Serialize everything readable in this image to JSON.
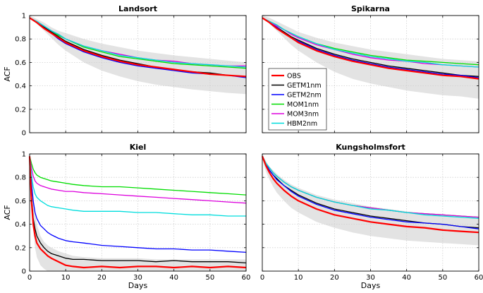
{
  "chart_data": [
    {
      "type": "line",
      "title": "Landsort",
      "xlabel": "",
      "ylabel": "ACF",
      "xlim": [
        0,
        60
      ],
      "ylim": [
        0,
        1
      ],
      "xticks": [
        0,
        10,
        20,
        30,
        40,
        50,
        60
      ],
      "yticks": [
        0,
        0.2,
        0.4,
        0.6,
        0.8,
        1
      ],
      "show_xticklabels": false,
      "grid": true,
      "x": [
        0,
        2,
        4,
        6,
        8,
        10,
        15,
        20,
        25,
        30,
        35,
        40,
        45,
        50,
        55,
        60
      ],
      "band": {
        "upper": [
          1.0,
          0.97,
          0.94,
          0.9,
          0.87,
          0.85,
          0.8,
          0.76,
          0.73,
          0.7,
          0.68,
          0.66,
          0.645,
          0.63,
          0.615,
          0.6
        ],
        "lower": [
          0.98,
          0.93,
          0.87,
          0.81,
          0.75,
          0.7,
          0.6,
          0.53,
          0.48,
          0.44,
          0.41,
          0.39,
          0.37,
          0.355,
          0.34,
          0.33
        ]
      },
      "series": [
        {
          "name": "OBS",
          "values": [
            0.98,
            0.94,
            0.89,
            0.85,
            0.81,
            0.77,
            0.7,
            0.65,
            0.61,
            0.58,
            0.56,
            0.54,
            0.52,
            0.5,
            0.49,
            0.48
          ]
        },
        {
          "name": "GETM1nm",
          "values": [
            0.98,
            0.94,
            0.9,
            0.86,
            0.82,
            0.78,
            0.71,
            0.66,
            0.62,
            0.59,
            0.56,
            0.54,
            0.52,
            0.51,
            0.49,
            0.48
          ]
        },
        {
          "name": "GETM2nm",
          "values": [
            0.98,
            0.94,
            0.89,
            0.85,
            0.8,
            0.76,
            0.69,
            0.64,
            0.6,
            0.57,
            0.55,
            0.53,
            0.51,
            0.5,
            0.49,
            0.47
          ]
        },
        {
          "name": "MOM1nm",
          "values": [
            0.98,
            0.95,
            0.91,
            0.87,
            0.83,
            0.8,
            0.73,
            0.69,
            0.65,
            0.63,
            0.61,
            0.59,
            0.58,
            0.57,
            0.56,
            0.55
          ]
        },
        {
          "name": "MOM3nm",
          "values": [
            0.98,
            0.95,
            0.91,
            0.87,
            0.84,
            0.8,
            0.74,
            0.7,
            0.67,
            0.64,
            0.62,
            0.61,
            0.59,
            0.58,
            0.57,
            0.57
          ]
        },
        {
          "name": "HBM2nm",
          "values": [
            0.98,
            0.95,
            0.91,
            0.87,
            0.84,
            0.8,
            0.74,
            0.7,
            0.66,
            0.64,
            0.62,
            0.6,
            0.59,
            0.58,
            0.57,
            0.56
          ]
        }
      ]
    },
    {
      "type": "line",
      "title": "Spikarna",
      "xlabel": "",
      "ylabel": "",
      "xlim": [
        0,
        60
      ],
      "ylim": [
        0,
        1
      ],
      "xticks": [
        0,
        10,
        20,
        30,
        40,
        50,
        60
      ],
      "yticks": [
        0,
        0.2,
        0.4,
        0.6,
        0.8,
        1
      ],
      "show_xticklabels": false,
      "show_yticklabels": false,
      "grid": true,
      "legend": "left",
      "x": [
        0,
        2,
        4,
        6,
        8,
        10,
        15,
        20,
        25,
        30,
        35,
        40,
        45,
        50,
        55,
        60
      ],
      "band": {
        "upper": [
          1.0,
          0.98,
          0.95,
          0.92,
          0.89,
          0.86,
          0.81,
          0.77,
          0.74,
          0.71,
          0.69,
          0.67,
          0.65,
          0.63,
          0.62,
          0.61
        ],
        "lower": [
          0.98,
          0.93,
          0.87,
          0.81,
          0.75,
          0.7,
          0.6,
          0.52,
          0.46,
          0.42,
          0.39,
          0.36,
          0.34,
          0.32,
          0.31,
          0.29
        ]
      },
      "series": [
        {
          "name": "OBS",
          "values": [
            0.98,
            0.94,
            0.89,
            0.85,
            0.81,
            0.77,
            0.7,
            0.65,
            0.61,
            0.58,
            0.55,
            0.53,
            0.51,
            0.49,
            0.48,
            0.46
          ]
        },
        {
          "name": "GETM1nm",
          "values": [
            0.98,
            0.94,
            0.9,
            0.86,
            0.82,
            0.79,
            0.72,
            0.67,
            0.63,
            0.6,
            0.57,
            0.55,
            0.53,
            0.51,
            0.49,
            0.48
          ]
        },
        {
          "name": "GETM2nm",
          "values": [
            0.98,
            0.94,
            0.9,
            0.85,
            0.81,
            0.78,
            0.71,
            0.66,
            0.62,
            0.59,
            0.56,
            0.54,
            0.52,
            0.5,
            0.49,
            0.47
          ]
        },
        {
          "name": "MOM1nm",
          "values": [
            0.98,
            0.95,
            0.92,
            0.88,
            0.85,
            0.82,
            0.76,
            0.72,
            0.69,
            0.66,
            0.64,
            0.62,
            0.61,
            0.6,
            0.59,
            0.58
          ]
        },
        {
          "name": "MOM3nm",
          "values": [
            0.98,
            0.95,
            0.91,
            0.88,
            0.84,
            0.81,
            0.75,
            0.71,
            0.67,
            0.64,
            0.62,
            0.61,
            0.59,
            0.58,
            0.57,
            0.56
          ]
        },
        {
          "name": "HBM2nm",
          "values": [
            0.98,
            0.95,
            0.92,
            0.88,
            0.85,
            0.82,
            0.76,
            0.71,
            0.68,
            0.65,
            0.63,
            0.61,
            0.6,
            0.58,
            0.57,
            0.56
          ]
        }
      ]
    },
    {
      "type": "line",
      "title": "Kiel",
      "xlabel": "Days",
      "ylabel": "ACF",
      "xlim": [
        0,
        60
      ],
      "ylim": [
        0,
        1
      ],
      "xticks": [
        0,
        10,
        20,
        30,
        40,
        50,
        60
      ],
      "yticks": [
        0,
        0.2,
        0.4,
        0.6,
        0.8,
        1
      ],
      "grid": true,
      "x": [
        0,
        0.5,
        1,
        1.5,
        2,
        3,
        4,
        5,
        6,
        8,
        10,
        12,
        15,
        20,
        25,
        30,
        35,
        40,
        45,
        50,
        55,
        60
      ],
      "band": {
        "upper": [
          1.0,
          0.85,
          0.65,
          0.5,
          0.4,
          0.3,
          0.25,
          0.22,
          0.2,
          0.17,
          0.15,
          0.13,
          0.12,
          0.11,
          0.11,
          0.11,
          0.1,
          0.1,
          0.1,
          0.1,
          0.1,
          0.1
        ],
        "lower": [
          0.95,
          0.6,
          0.35,
          0.2,
          0.12,
          0.05,
          0.02,
          0.0,
          0.0,
          0.0,
          0.0,
          0.0,
          0.0,
          0.0,
          0.0,
          0.0,
          0.0,
          0.0,
          0.0,
          0.0,
          0.0,
          0.0
        ]
      },
      "series": [
        {
          "name": "OBS",
          "values": [
            0.98,
            0.6,
            0.4,
            0.3,
            0.24,
            0.19,
            0.16,
            0.13,
            0.11,
            0.08,
            0.05,
            0.04,
            0.03,
            0.04,
            0.03,
            0.04,
            0.04,
            0.03,
            0.04,
            0.03,
            0.04,
            0.03
          ]
        },
        {
          "name": "GETM1nm",
          "values": [
            0.98,
            0.65,
            0.45,
            0.36,
            0.3,
            0.24,
            0.2,
            0.17,
            0.15,
            0.13,
            0.11,
            0.1,
            0.1,
            0.09,
            0.09,
            0.09,
            0.08,
            0.09,
            0.08,
            0.08,
            0.08,
            0.07
          ]
        },
        {
          "name": "GETM2nm",
          "values": [
            0.98,
            0.75,
            0.6,
            0.5,
            0.45,
            0.39,
            0.36,
            0.33,
            0.31,
            0.28,
            0.26,
            0.25,
            0.24,
            0.22,
            0.21,
            0.2,
            0.19,
            0.19,
            0.18,
            0.18,
            0.17,
            0.16
          ]
        },
        {
          "name": "MOM1nm",
          "values": [
            0.98,
            0.92,
            0.87,
            0.84,
            0.82,
            0.8,
            0.79,
            0.78,
            0.77,
            0.76,
            0.75,
            0.74,
            0.73,
            0.72,
            0.72,
            0.71,
            0.7,
            0.69,
            0.68,
            0.67,
            0.66,
            0.65
          ]
        },
        {
          "name": "MOM3nm",
          "values": [
            0.98,
            0.88,
            0.81,
            0.77,
            0.75,
            0.73,
            0.72,
            0.71,
            0.7,
            0.69,
            0.68,
            0.68,
            0.67,
            0.66,
            0.65,
            0.64,
            0.63,
            0.62,
            0.61,
            0.6,
            0.59,
            0.58
          ]
        },
        {
          "name": "HBM2nm",
          "values": [
            0.98,
            0.82,
            0.72,
            0.66,
            0.63,
            0.6,
            0.58,
            0.56,
            0.55,
            0.54,
            0.53,
            0.52,
            0.51,
            0.51,
            0.51,
            0.5,
            0.5,
            0.49,
            0.48,
            0.48,
            0.47,
            0.47
          ]
        }
      ]
    },
    {
      "type": "line",
      "title": "Kungsholmsfort",
      "xlabel": "Days",
      "ylabel": "",
      "xlim": [
        0,
        60
      ],
      "ylim": [
        0,
        1
      ],
      "xticks": [
        0,
        10,
        20,
        30,
        40,
        50,
        60
      ],
      "yticks": [
        0,
        0.2,
        0.4,
        0.6,
        0.8,
        1
      ],
      "show_yticklabels": false,
      "grid": true,
      "x": [
        0,
        1,
        2,
        3,
        4,
        6,
        8,
        10,
        15,
        20,
        25,
        30,
        35,
        40,
        45,
        50,
        55,
        60
      ],
      "band": {
        "upper": [
          1.0,
          0.94,
          0.89,
          0.86,
          0.83,
          0.78,
          0.74,
          0.71,
          0.65,
          0.61,
          0.58,
          0.55,
          0.53,
          0.51,
          0.49,
          0.48,
          0.47,
          0.46
        ],
        "lower": [
          0.96,
          0.85,
          0.78,
          0.72,
          0.67,
          0.6,
          0.54,
          0.5,
          0.42,
          0.37,
          0.33,
          0.3,
          0.28,
          0.26,
          0.25,
          0.24,
          0.23,
          0.22
        ]
      },
      "series": [
        {
          "name": "OBS",
          "values": [
            0.98,
            0.9,
            0.84,
            0.79,
            0.75,
            0.69,
            0.64,
            0.6,
            0.53,
            0.48,
            0.45,
            0.42,
            0.4,
            0.38,
            0.37,
            0.35,
            0.34,
            0.33
          ]
        },
        {
          "name": "GETM1nm",
          "values": [
            0.98,
            0.91,
            0.86,
            0.82,
            0.79,
            0.73,
            0.69,
            0.65,
            0.58,
            0.53,
            0.5,
            0.47,
            0.45,
            0.43,
            0.41,
            0.4,
            0.38,
            0.37
          ]
        },
        {
          "name": "GETM2nm",
          "values": [
            0.98,
            0.91,
            0.86,
            0.82,
            0.78,
            0.73,
            0.68,
            0.64,
            0.57,
            0.52,
            0.49,
            0.46,
            0.44,
            0.42,
            0.41,
            0.4,
            0.38,
            0.36
          ]
        },
        {
          "name": "MOM1nm",
          "values": [
            0.98,
            0.92,
            0.88,
            0.84,
            0.81,
            0.76,
            0.72,
            0.69,
            0.63,
            0.59,
            0.56,
            0.54,
            0.52,
            0.5,
            0.49,
            0.48,
            0.47,
            0.46
          ]
        },
        {
          "name": "MOM3nm",
          "values": [
            0.98,
            0.92,
            0.88,
            0.84,
            0.81,
            0.76,
            0.72,
            0.69,
            0.63,
            0.59,
            0.56,
            0.54,
            0.52,
            0.5,
            0.49,
            0.48,
            0.47,
            0.46
          ]
        },
        {
          "name": "HBM2nm",
          "values": [
            0.98,
            0.92,
            0.88,
            0.84,
            0.81,
            0.76,
            0.72,
            0.69,
            0.63,
            0.59,
            0.56,
            0.53,
            0.52,
            0.5,
            0.48,
            0.47,
            0.46,
            0.45
          ]
        }
      ]
    }
  ],
  "legend": {
    "entries": [
      "OBS",
      "GETM1nm",
      "GETM2nm",
      "MOM1nm",
      "MOM3nm",
      "HBM2nm"
    ]
  },
  "colors": {
    "OBS": "#ff0000",
    "GETM1nm": "#000000",
    "GETM2nm": "#0000ff",
    "MOM1nm": "#00dd00",
    "MOM3nm": "#dd00dd",
    "HBM2nm": "#00dddd",
    "band": "#e3e3e3",
    "grid": "#cfcfcf"
  }
}
